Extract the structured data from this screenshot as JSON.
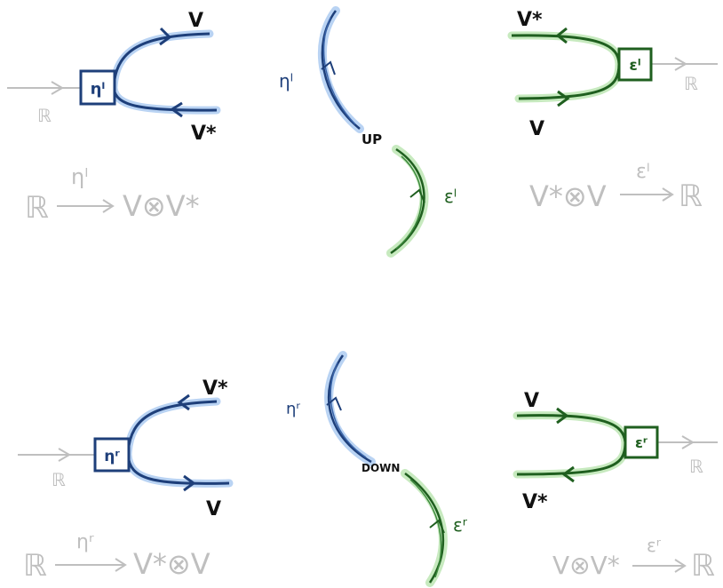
{
  "colors": {
    "blue_stroke": "#1e3f7a",
    "blue_glow": "#b9d3f3",
    "green_stroke": "#1f5f1f",
    "green_glow": "#c7eabf",
    "gray": "#bfbfbf",
    "ink": "#111111"
  },
  "top_left": {
    "box_label": "ηˡ",
    "upper_strand": "V",
    "lower_strand": "V*",
    "input": "ℝ",
    "map_source": "ℝ",
    "map_arrow_label": "ηˡ",
    "map_target": "V⊗V*"
  },
  "top_right": {
    "box_label": "εˡ",
    "upper_strand": "V*",
    "lower_strand": "V",
    "output": "ℝ",
    "map_source": "V*⊗V",
    "map_arrow_label": "εˡ",
    "map_target": "ℝ"
  },
  "top_middle": {
    "upper_curve_label": "ηˡ",
    "lower_curve_label": "εˡ",
    "move_label": "UP"
  },
  "bottom_left": {
    "box_label": "ηʳ",
    "upper_strand": "V*",
    "lower_strand": "V",
    "input": "ℝ",
    "map_source": "ℝ",
    "map_arrow_label": "ηʳ",
    "map_target": "V*⊗V"
  },
  "bottom_right": {
    "box_label": "εʳ",
    "upper_strand": "V",
    "lower_strand": "V*",
    "output": "ℝ",
    "map_source": "V⊗V*",
    "map_arrow_label": "εʳ",
    "map_target": "ℝ"
  },
  "bottom_middle": {
    "upper_curve_label": "ηʳ",
    "lower_curve_label": "εʳ",
    "move_label": "DOWN"
  }
}
